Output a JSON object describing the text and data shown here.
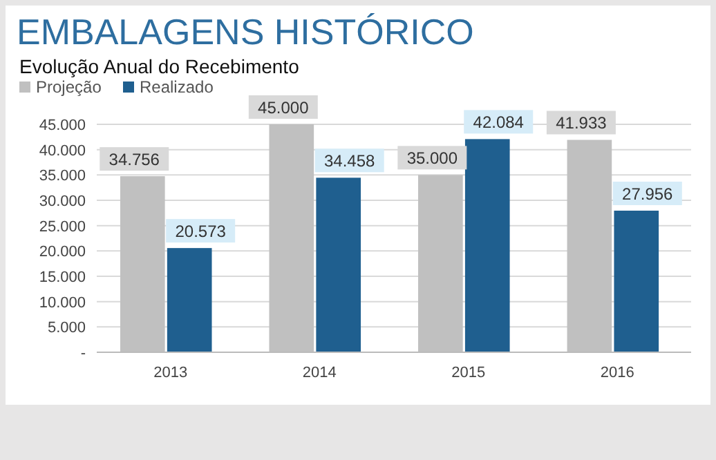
{
  "chart_data": {
    "type": "bar",
    "title": "EMBALAGENS HISTÓRICO",
    "subtitle": "Evolução Anual do Recebimento",
    "categories": [
      "2013",
      "2014",
      "2015",
      "2016"
    ],
    "series": [
      {
        "name": "Projeção",
        "color": "#c0c0c0",
        "values": [
          34756,
          45000,
          35000,
          41933
        ],
        "value_labels": [
          "34.756",
          "45.000",
          "35.000",
          "41.933"
        ]
      },
      {
        "name": "Realizado",
        "color": "#1f5f8f",
        "values": [
          20573,
          34458,
          42084,
          27956
        ],
        "value_labels": [
          "20.573",
          "34.458",
          "42.084",
          "27.956"
        ]
      }
    ],
    "ylim": [
      0,
      45000
    ],
    "yticks": [
      {
        "value": 0,
        "label": "-"
      },
      {
        "value": 5000,
        "label": "5.000"
      },
      {
        "value": 10000,
        "label": "10.000"
      },
      {
        "value": 15000,
        "label": "15.000"
      },
      {
        "value": 20000,
        "label": "20.000"
      },
      {
        "value": 25000,
        "label": "25.000"
      },
      {
        "value": 30000,
        "label": "30.000"
      },
      {
        "value": 35000,
        "label": "35.000"
      },
      {
        "value": 40000,
        "label": "40.000"
      },
      {
        "value": 45000,
        "label": "45.000"
      }
    ],
    "grid": "y",
    "legend": "top left"
  }
}
